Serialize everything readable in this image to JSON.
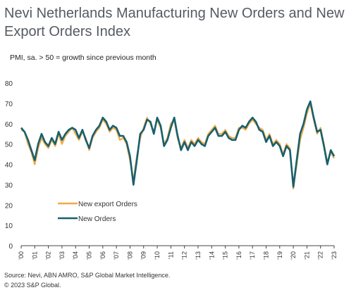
{
  "title": "Nevi Netherlands Manufacturing New Orders and New Export Orders Index",
  "subtitle": "PMI, sa. > 50 = growth since previous month",
  "source_line1": "Source: Nevi, ABN AMRO, S&P Global Market Intelligence.",
  "source_line2": "© 2023 S&P Global.",
  "colors": {
    "new_orders": "#17606e",
    "new_export_orders": "#f0a948",
    "axis": "#444444"
  },
  "chart_data": {
    "type": "line",
    "ylim": [
      0,
      80
    ],
    "yticks": [
      0,
      10,
      20,
      30,
      40,
      50,
      60,
      70,
      80
    ],
    "xlim": [
      2000.0,
      2023.0
    ],
    "xtick_labels": [
      "'00",
      "'01",
      "'02",
      "'03",
      "'04",
      "'05",
      "'06",
      "'07",
      "'08",
      "'09",
      "'10",
      "'11",
      "'12",
      "'13",
      "'14",
      "'15",
      "'16",
      "'17",
      "'18",
      "'19",
      "'20",
      "'21",
      "'22",
      "'23"
    ],
    "legend_position": "lower-left",
    "series": [
      {
        "name": "New export Orders",
        "color": "#f0a948",
        "x": [
          2000.0,
          2000.25,
          2000.5,
          2000.75,
          2001.0,
          2001.25,
          2001.5,
          2001.75,
          2002.0,
          2002.25,
          2002.5,
          2002.75,
          2003.0,
          2003.25,
          2003.5,
          2003.75,
          2004.0,
          2004.25,
          2004.5,
          2004.75,
          2005.0,
          2005.25,
          2005.5,
          2005.75,
          2006.0,
          2006.25,
          2006.5,
          2006.75,
          2007.0,
          2007.25,
          2007.5,
          2007.75,
          2008.0,
          2008.25,
          2008.5,
          2008.75,
          2009.0,
          2009.25,
          2009.5,
          2009.75,
          2010.0,
          2010.25,
          2010.5,
          2010.75,
          2011.0,
          2011.25,
          2011.5,
          2011.75,
          2012.0,
          2012.25,
          2012.5,
          2012.75,
          2013.0,
          2013.25,
          2013.5,
          2013.75,
          2014.0,
          2014.25,
          2014.5,
          2014.75,
          2015.0,
          2015.25,
          2015.5,
          2015.75,
          2016.0,
          2016.25,
          2016.5,
          2016.75,
          2017.0,
          2017.25,
          2017.5,
          2017.75,
          2018.0,
          2018.25,
          2018.5,
          2018.75,
          2019.0,
          2019.25,
          2019.5,
          2019.75,
          2020.0,
          2020.25,
          2020.5,
          2020.75,
          2021.0,
          2021.25,
          2021.5,
          2021.75,
          2022.0,
          2022.25,
          2022.5,
          2022.75,
          2023.0
        ],
        "y": [
          57,
          56,
          50,
          46,
          40,
          48,
          53,
          50,
          48,
          52,
          49,
          55,
          50,
          54,
          56,
          58,
          55,
          52,
          56,
          53,
          47,
          53,
          56,
          58,
          62,
          60,
          56,
          58,
          57,
          52,
          53,
          50,
          42,
          32,
          44,
          53,
          58,
          63,
          60,
          56,
          62,
          58,
          50,
          53,
          60,
          62,
          53,
          48,
          52,
          48,
          52,
          50,
          53,
          51,
          50,
          55,
          57,
          59,
          55,
          55,
          57,
          54,
          53,
          53,
          58,
          58,
          57,
          60,
          62,
          60,
          58,
          57,
          52,
          55,
          50,
          52,
          50,
          45,
          50,
          48,
          28,
          40,
          52,
          58,
          65,
          70,
          62,
          55,
          58,
          50,
          41,
          46,
          43
        ]
      },
      {
        "name": "New Orders",
        "color": "#17606e",
        "x": [
          2000.0,
          2000.25,
          2000.5,
          2000.75,
          2001.0,
          2001.25,
          2001.5,
          2001.75,
          2002.0,
          2002.25,
          2002.5,
          2002.75,
          2003.0,
          2003.25,
          2003.5,
          2003.75,
          2004.0,
          2004.25,
          2004.5,
          2004.75,
          2005.0,
          2005.25,
          2005.5,
          2005.75,
          2006.0,
          2006.25,
          2006.5,
          2006.75,
          2007.0,
          2007.25,
          2007.5,
          2007.75,
          2008.0,
          2008.25,
          2008.5,
          2008.75,
          2009.0,
          2009.25,
          2009.5,
          2009.75,
          2010.0,
          2010.25,
          2010.5,
          2010.75,
          2011.0,
          2011.25,
          2011.5,
          2011.75,
          2012.0,
          2012.25,
          2012.5,
          2012.75,
          2013.0,
          2013.25,
          2013.5,
          2013.75,
          2014.0,
          2014.25,
          2014.5,
          2014.75,
          2015.0,
          2015.25,
          2015.5,
          2015.75,
          2016.0,
          2016.25,
          2016.5,
          2016.75,
          2017.0,
          2017.25,
          2017.5,
          2017.75,
          2018.0,
          2018.25,
          2018.5,
          2018.75,
          2019.0,
          2019.25,
          2019.5,
          2019.75,
          2020.0,
          2020.25,
          2020.5,
          2020.75,
          2021.0,
          2021.25,
          2021.5,
          2021.75,
          2022.0,
          2022.25,
          2022.5,
          2022.75,
          2023.0
        ],
        "y": [
          58,
          56,
          52,
          47,
          42,
          50,
          55,
          51,
          49,
          53,
          50,
          56,
          52,
          55,
          57,
          58,
          57,
          53,
          57,
          52,
          48,
          54,
          57,
          59,
          63,
          61,
          57,
          59,
          58,
          54,
          54,
          51,
          44,
          30,
          42,
          55,
          57,
          62,
          61,
          55,
          63,
          59,
          49,
          52,
          58,
          63,
          54,
          47,
          51,
          47,
          51,
          49,
          52,
          50,
          49,
          54,
          56,
          58,
          54,
          54,
          56,
          53,
          52,
          52,
          57,
          59,
          58,
          61,
          63,
          61,
          57,
          56,
          51,
          54,
          49,
          51,
          49,
          44,
          49,
          47,
          29,
          42,
          55,
          60,
          67,
          71,
          63,
          56,
          57,
          49,
          40,
          47,
          44
        ]
      }
    ]
  }
}
